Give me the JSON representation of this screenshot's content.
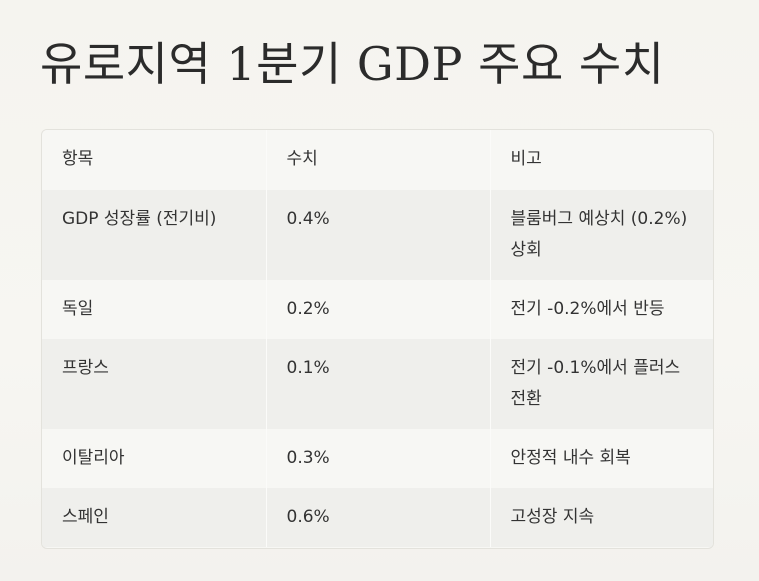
{
  "title": "유로지역 1분기 GDP 주요 수치",
  "table": {
    "headers": [
      "항목",
      "수치",
      "비고"
    ],
    "rows": [
      [
        "GDP 성장률 (전기비)",
        "0.4%",
        "블룸버그 예상치 (0.2%) 상회"
      ],
      [
        "독일",
        "0.2%",
        "전기 -0.2%에서 반등"
      ],
      [
        "프랑스",
        "0.1%",
        "전기 -0.1%에서 플러스 전환"
      ],
      [
        "이탈리아",
        "0.3%",
        "안정적 내수 회복"
      ],
      [
        "스페인",
        "0.6%",
        "고성장 지속"
      ]
    ]
  }
}
